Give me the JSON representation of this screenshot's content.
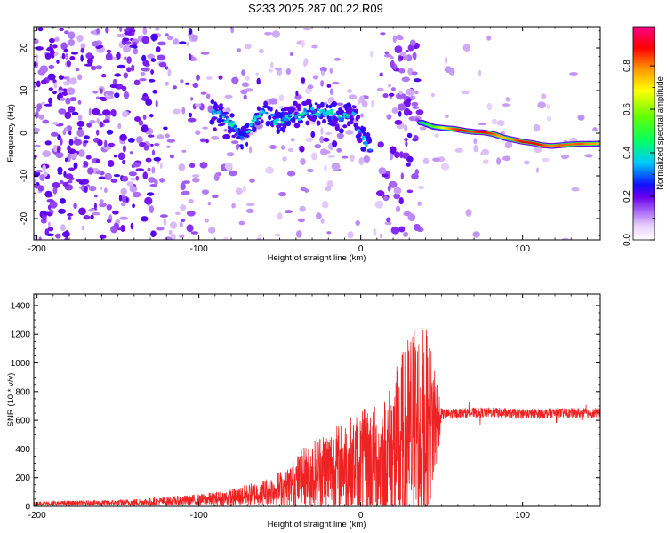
{
  "title": "S233.2025.287.00.22.R09",
  "chart_data": [
    {
      "type": "heatmap",
      "name": "spectrogram",
      "xlabel": "Height of straight line (km)",
      "ylabel": "Frequency (Hz)",
      "xlim": [
        -202,
        148
      ],
      "ylim": [
        -25,
        25
      ],
      "xticks": [
        -200,
        -100,
        0,
        100
      ],
      "xtick_labels": [
        "-200",
        "-100",
        "0",
        "100"
      ],
      "yticks": [
        20,
        10,
        0,
        -10,
        -20
      ],
      "ytick_labels": [
        "20",
        "10",
        "0",
        "-10",
        "-20"
      ],
      "ridge_x": [
        -92,
        -88,
        -85,
        -82,
        -79,
        -76,
        -72,
        -68,
        -64,
        -60,
        -56,
        -52,
        -48,
        -44,
        -40,
        -36,
        -32,
        -28,
        -24,
        -20,
        -16,
        -12,
        -8,
        -5,
        -3,
        -1,
        0,
        2,
        4,
        5,
        6
      ],
      "ridge_f": [
        5,
        4.5,
        4,
        3,
        2,
        0,
        -1.5,
        1.5,
        3.5,
        5,
        4,
        2.5,
        3,
        4,
        3.5,
        4.5,
        5,
        5,
        4.5,
        5,
        4,
        3,
        4.5,
        5,
        3,
        1,
        -1,
        -1.5,
        -3,
        -2,
        -3.5
      ],
      "tail_x": [
        38,
        45,
        52,
        58,
        64,
        70,
        76,
        82,
        88,
        94,
        100,
        106,
        112,
        118,
        124,
        130,
        136,
        142,
        148
      ],
      "tail_f": [
        2.5,
        1.5,
        1.2,
        1.0,
        0.6,
        0.3,
        0.2,
        -0.2,
        -1.0,
        -1.5,
        -2.0,
        -2.3,
        -2.8,
        -3.0,
        -2.8,
        -2.6,
        -2.5,
        -2.5,
        -2.4
      ],
      "tail_amp": [
        0.45,
        0.55,
        0.72,
        0.85,
        0.9,
        0.85,
        0.92,
        0.85,
        0.75,
        0.8,
        0.9,
        0.92,
        0.88,
        0.8,
        0.85,
        0.82,
        0.85,
        0.8,
        0.78
      ],
      "colorbar": {
        "label": "Normalized spectral amplitude",
        "ticks": [
          0.0,
          0.2,
          0.4,
          0.6,
          0.8
        ],
        "tick_labels": [
          "0.0",
          "0.2",
          "0.4",
          "0.6",
          "0.8"
        ],
        "range": [
          0,
          0.98
        ]
      }
    },
    {
      "type": "line",
      "name": "snr",
      "xlabel": "Height of straight line (km)",
      "ylabel": "SNR (10 * v/v)",
      "xlim": [
        -202,
        148
      ],
      "ylim": [
        0,
        1480
      ],
      "xticks": [
        -200,
        -100,
        0,
        100
      ],
      "xtick_labels": [
        "-200",
        "-100",
        "0",
        "100"
      ],
      "yticks": [
        0,
        200,
        400,
        600,
        800,
        1000,
        1200,
        1400
      ],
      "ytick_labels": [
        "0",
        "200",
        "400",
        "600",
        "800",
        "1000",
        "1200",
        "1400"
      ],
      "color": "#ee2222",
      "envelope_x": [
        -202,
        -150,
        -120,
        -100,
        -80,
        -60,
        -45,
        -35,
        -25,
        -15,
        -5,
        5,
        12,
        20,
        28,
        34,
        40,
        46,
        50,
        60,
        80,
        100,
        120,
        148
      ],
      "envelope_base": [
        20,
        25,
        35,
        45,
        60,
        100,
        140,
        200,
        250,
        270,
        300,
        320,
        300,
        350,
        420,
        500,
        550,
        600,
        640,
        650,
        655,
        645,
        650,
        650
      ],
      "envelope_amp": [
        15,
        20,
        30,
        40,
        60,
        90,
        140,
        220,
        280,
        300,
        340,
        380,
        420,
        560,
        750,
        850,
        700,
        450,
        40,
        35,
        35,
        35,
        35,
        35
      ]
    }
  ]
}
